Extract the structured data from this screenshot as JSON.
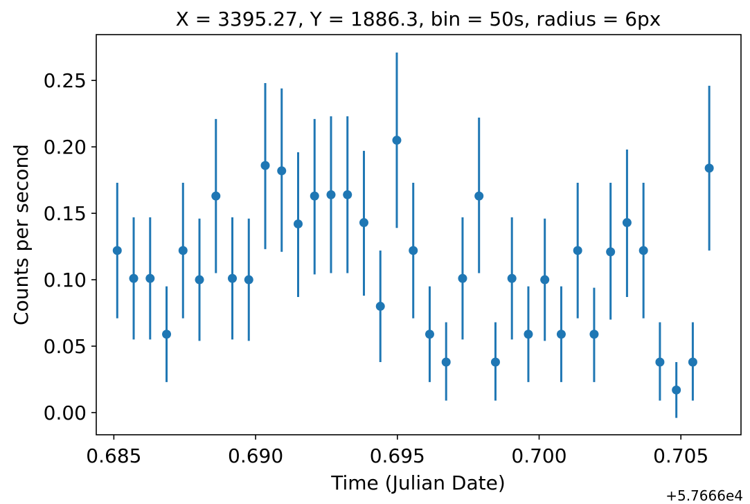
{
  "chart_data": {
    "type": "scatter",
    "title": "X = 3395.27, Y = 1886.3, bin = 50s, radius = 6px",
    "xlabel": "Time (Julian Date)",
    "ylabel": "Counts per second",
    "x_offset_label": "+5.7666e4",
    "xlim": [
      0.68438,
      0.70712
    ],
    "ylim": [
      -0.0167,
      0.2845
    ],
    "x_ticks": [
      0.685,
      0.69,
      0.695,
      0.7,
      0.705
    ],
    "x_tick_labels": [
      "0.685",
      "0.690",
      "0.695",
      "0.700",
      "0.705"
    ],
    "y_ticks": [
      0.0,
      0.05,
      0.1,
      0.15,
      0.2,
      0.25
    ],
    "y_tick_labels": [
      "0.00",
      "0.05",
      "0.10",
      "0.15",
      "0.20",
      "0.25"
    ],
    "grid": false,
    "series_color": "#1f77b4",
    "points": [
      {
        "x": 0.68512,
        "y": 0.122,
        "ylo": 0.071,
        "yhi": 0.173
      },
      {
        "x": 0.6857,
        "y": 0.101,
        "ylo": 0.055,
        "yhi": 0.147
      },
      {
        "x": 0.68628,
        "y": 0.101,
        "ylo": 0.055,
        "yhi": 0.147
      },
      {
        "x": 0.68686,
        "y": 0.059,
        "ylo": 0.023,
        "yhi": 0.095
      },
      {
        "x": 0.68744,
        "y": 0.122,
        "ylo": 0.071,
        "yhi": 0.173
      },
      {
        "x": 0.68802,
        "y": 0.1,
        "ylo": 0.054,
        "yhi": 0.146
      },
      {
        "x": 0.6886,
        "y": 0.163,
        "ylo": 0.105,
        "yhi": 0.221
      },
      {
        "x": 0.68918,
        "y": 0.101,
        "ylo": 0.055,
        "yhi": 0.147
      },
      {
        "x": 0.68976,
        "y": 0.1,
        "ylo": 0.054,
        "yhi": 0.146
      },
      {
        "x": 0.69034,
        "y": 0.186,
        "ylo": 0.123,
        "yhi": 0.248
      },
      {
        "x": 0.69092,
        "y": 0.182,
        "ylo": 0.121,
        "yhi": 0.244
      },
      {
        "x": 0.6915,
        "y": 0.142,
        "ylo": 0.087,
        "yhi": 0.196
      },
      {
        "x": 0.69208,
        "y": 0.163,
        "ylo": 0.104,
        "yhi": 0.221
      },
      {
        "x": 0.69266,
        "y": 0.164,
        "ylo": 0.105,
        "yhi": 0.223
      },
      {
        "x": 0.69324,
        "y": 0.164,
        "ylo": 0.105,
        "yhi": 0.223
      },
      {
        "x": 0.69382,
        "y": 0.143,
        "ylo": 0.088,
        "yhi": 0.197
      },
      {
        "x": 0.6944,
        "y": 0.08,
        "ylo": 0.038,
        "yhi": 0.122
      },
      {
        "x": 0.69498,
        "y": 0.205,
        "ylo": 0.139,
        "yhi": 0.271
      },
      {
        "x": 0.69556,
        "y": 0.122,
        "ylo": 0.071,
        "yhi": 0.173
      },
      {
        "x": 0.69614,
        "y": 0.059,
        "ylo": 0.023,
        "yhi": 0.095
      },
      {
        "x": 0.69672,
        "y": 0.038,
        "ylo": 0.009,
        "yhi": 0.068
      },
      {
        "x": 0.6973,
        "y": 0.101,
        "ylo": 0.055,
        "yhi": 0.147
      },
      {
        "x": 0.69788,
        "y": 0.163,
        "ylo": 0.105,
        "yhi": 0.222
      },
      {
        "x": 0.69846,
        "y": 0.038,
        "ylo": 0.009,
        "yhi": 0.068
      },
      {
        "x": 0.69904,
        "y": 0.101,
        "ylo": 0.055,
        "yhi": 0.147
      },
      {
        "x": 0.69962,
        "y": 0.059,
        "ylo": 0.023,
        "yhi": 0.095
      },
      {
        "x": 0.7002,
        "y": 0.1,
        "ylo": 0.054,
        "yhi": 0.146
      },
      {
        "x": 0.70078,
        "y": 0.059,
        "ylo": 0.023,
        "yhi": 0.095
      },
      {
        "x": 0.70136,
        "y": 0.122,
        "ylo": 0.071,
        "yhi": 0.173
      },
      {
        "x": 0.70194,
        "y": 0.059,
        "ylo": 0.023,
        "yhi": 0.094
      },
      {
        "x": 0.70252,
        "y": 0.121,
        "ylo": 0.07,
        "yhi": 0.173
      },
      {
        "x": 0.7031,
        "y": 0.143,
        "ylo": 0.087,
        "yhi": 0.198
      },
      {
        "x": 0.70368,
        "y": 0.122,
        "ylo": 0.071,
        "yhi": 0.173
      },
      {
        "x": 0.70426,
        "y": 0.038,
        "ylo": 0.009,
        "yhi": 0.068
      },
      {
        "x": 0.70484,
        "y": 0.017,
        "ylo": -0.004,
        "yhi": 0.038
      },
      {
        "x": 0.70542,
        "y": 0.038,
        "ylo": 0.009,
        "yhi": 0.068
      },
      {
        "x": 0.706,
        "y": 0.184,
        "ylo": 0.122,
        "yhi": 0.246
      }
    ]
  }
}
